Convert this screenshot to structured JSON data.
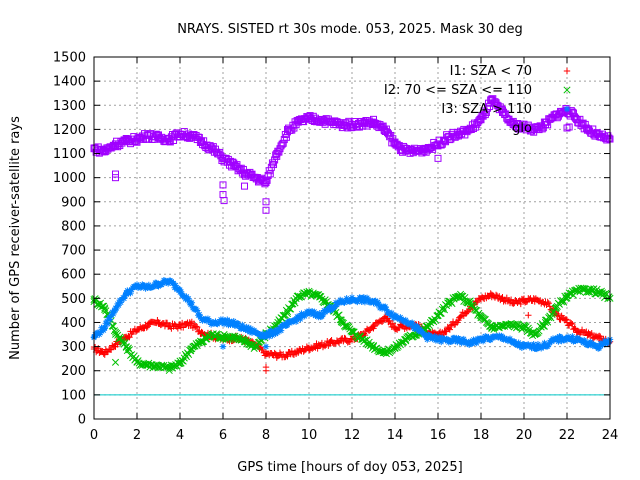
{
  "chart_data": {
    "type": "scatter",
    "title": "NRAYS. SISTED rt 30s mode. 053, 2025. Mask 30 deg",
    "xlabel": "GPS time [hours of doy 053, 2025]",
    "ylabel": "Number of GPS receiver-satellite rays",
    "xlim": [
      0,
      24
    ],
    "ylim": [
      0,
      1500
    ],
    "xticks": [
      0,
      2,
      4,
      6,
      8,
      10,
      12,
      14,
      16,
      18,
      20,
      22,
      24
    ],
    "yticks": [
      0,
      100,
      200,
      300,
      400,
      500,
      600,
      700,
      800,
      900,
      1000,
      1100,
      1200,
      1300,
      1400,
      1500
    ],
    "grid": true,
    "legend_position": "top-right",
    "reference_line": {
      "y": 100,
      "color": "#00c8c8"
    },
    "series": [
      {
        "name": "I1: SZA < 70",
        "marker": "plus",
        "color": "#ff0000",
        "x": [
          0,
          0.5,
          1,
          1.5,
          2,
          2.5,
          3,
          3.5,
          4,
          4.5,
          5,
          5.5,
          6,
          6.5,
          7,
          7.5,
          8,
          8.5,
          9,
          9.5,
          10,
          10.5,
          11,
          11.5,
          12,
          12.5,
          13,
          13.5,
          14,
          14.5,
          15,
          15.5,
          16,
          16.5,
          17,
          17.5,
          18,
          18.5,
          19,
          19.5,
          20,
          20.5,
          21,
          21.5,
          22,
          22.5,
          23,
          23.5,
          24
        ],
        "y": [
          290,
          275,
          310,
          340,
          370,
          390,
          400,
          385,
          385,
          395,
          360,
          345,
          330,
          335,
          330,
          305,
          270,
          265,
          265,
          280,
          295,
          305,
          315,
          325,
          330,
          350,
          385,
          420,
          380,
          385,
          390,
          355,
          345,
          375,
          420,
          465,
          500,
          515,
          500,
          480,
          490,
          495,
          485,
          435,
          400,
          365,
          350,
          335,
          320
        ]
      },
      {
        "name": "I2: 70 <= SZA <= 110",
        "marker": "cross",
        "color": "#00c000",
        "x": [
          0,
          0.5,
          1,
          1.5,
          2,
          2.5,
          3,
          3.5,
          4,
          4.5,
          5,
          5.5,
          6,
          6.5,
          7,
          7.5,
          8,
          8.5,
          9,
          9.5,
          10,
          10.5,
          11,
          11.5,
          12,
          12.5,
          13,
          13.5,
          14,
          14.5,
          15,
          15.5,
          16,
          16.5,
          17,
          17.5,
          18,
          18.5,
          19,
          19.5,
          20,
          20.5,
          21,
          21.5,
          22,
          22.5,
          23,
          23.5,
          24
        ],
        "y": [
          495,
          460,
          360,
          300,
          235,
          225,
          220,
          210,
          230,
          290,
          320,
          350,
          340,
          340,
          320,
          300,
          350,
          390,
          445,
          510,
          520,
          505,
          470,
          410,
          360,
          330,
          300,
          275,
          295,
          330,
          355,
          380,
          430,
          480,
          510,
          480,
          420,
          380,
          385,
          390,
          380,
          350,
          400,
          460,
          510,
          530,
          535,
          525,
          500
        ]
      },
      {
        "name": "I3: SZA > 110",
        "marker": "star",
        "color": "#0080ff",
        "x": [
          0,
          0.5,
          1,
          1.5,
          2,
          2.5,
          3,
          3.5,
          4,
          4.5,
          5,
          5.5,
          6,
          6.5,
          7,
          7.5,
          8,
          8.5,
          9,
          9.5,
          10,
          10.5,
          11,
          11.5,
          12,
          12.5,
          13,
          13.5,
          14,
          14.5,
          15,
          15.5,
          16,
          16.5,
          17,
          17.5,
          18,
          18.5,
          19,
          19.5,
          20,
          20.5,
          21,
          21.5,
          22,
          22.5,
          23,
          23.5,
          24
        ],
        "y": [
          340,
          380,
          460,
          520,
          550,
          545,
          560,
          570,
          535,
          480,
          415,
          400,
          405,
          395,
          375,
          360,
          345,
          365,
          390,
          420,
          440,
          430,
          460,
          485,
          495,
          495,
          485,
          460,
          425,
          410,
          375,
          340,
          330,
          325,
          325,
          315,
          330,
          335,
          340,
          315,
          300,
          300,
          305,
          330,
          335,
          330,
          310,
          300,
          330
        ]
      },
      {
        "name": "glo",
        "marker": "square",
        "color": "#a000ff",
        "x": [
          0,
          0.5,
          1,
          1.5,
          2,
          2.5,
          3,
          3.5,
          4,
          4.5,
          5,
          5.5,
          6,
          6.5,
          7,
          7.5,
          8,
          8.5,
          9,
          9.5,
          10,
          10.5,
          11,
          11.5,
          12,
          12.5,
          13,
          13.5,
          14,
          14.5,
          15,
          15.5,
          16,
          16.5,
          17,
          17.5,
          18,
          18.5,
          19,
          19.5,
          20,
          20.5,
          21,
          21.5,
          22,
          22.5,
          23,
          23.5,
          24
        ],
        "y": [
          1120,
          1110,
          1140,
          1150,
          1160,
          1175,
          1165,
          1160,
          1180,
          1175,
          1150,
          1120,
          1080,
          1050,
          1020,
          1000,
          980,
          1100,
          1190,
          1230,
          1245,
          1240,
          1230,
          1220,
          1220,
          1225,
          1230,
          1200,
          1140,
          1110,
          1110,
          1120,
          1140,
          1170,
          1180,
          1200,
          1240,
          1320,
          1270,
          1220,
          1210,
          1200,
          1220,
          1260,
          1280,
          1240,
          1200,
          1170,
          1160
        ]
      }
    ],
    "outliers": [
      {
        "series": "glo",
        "x": 1.0,
        "y": 1015
      },
      {
        "series": "glo",
        "x": 1.0,
        "y": 1000
      },
      {
        "series": "glo",
        "x": 6.0,
        "y": 970
      },
      {
        "series": "glo",
        "x": 6.0,
        "y": 930
      },
      {
        "series": "glo",
        "x": 6.05,
        "y": 905
      },
      {
        "series": "glo",
        "x": 7.0,
        "y": 965
      },
      {
        "series": "glo",
        "x": 8.0,
        "y": 900
      },
      {
        "series": "glo",
        "x": 8.0,
        "y": 865
      },
      {
        "series": "glo",
        "x": 16.0,
        "y": 1080
      },
      {
        "series": "glo",
        "x": 22.1,
        "y": 1210
      },
      {
        "series": "I1: SZA < 70",
        "x": 8.0,
        "y": 215
      },
      {
        "series": "I1: SZA < 70",
        "x": 8.0,
        "y": 200
      },
      {
        "series": "I1: SZA < 70",
        "x": 20.2,
        "y": 430
      },
      {
        "series": "I2: 70 <= SZA <= 110",
        "x": 1.0,
        "y": 235
      },
      {
        "series": "I3: SZA > 110",
        "x": 8.0,
        "y": 300
      },
      {
        "series": "I3: SZA > 110",
        "x": 6.0,
        "y": 300
      }
    ]
  }
}
